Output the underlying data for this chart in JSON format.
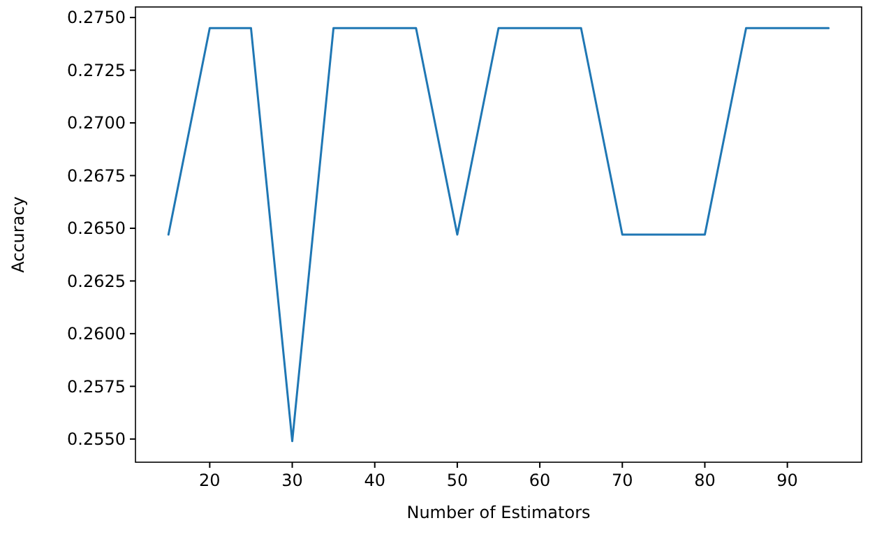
{
  "chart_data": {
    "type": "line",
    "xlabel": "Number of Estimators",
    "ylabel": "Accuracy",
    "x": [
      15,
      20,
      25,
      30,
      35,
      40,
      45,
      50,
      55,
      60,
      65,
      70,
      75,
      80,
      85,
      90,
      95
    ],
    "series": [
      {
        "color": "#1f77b4",
        "values": [
          0.2647,
          0.2745,
          0.2745,
          0.2549,
          0.2745,
          0.2745,
          0.2745,
          0.2647,
          0.2745,
          0.2745,
          0.2745,
          0.2647,
          0.2647,
          0.2647,
          0.2745,
          0.2745,
          0.2745
        ]
      }
    ],
    "xlim": [
      11,
      99
    ],
    "xticks": [
      20,
      30,
      40,
      50,
      60,
      70,
      80,
      90
    ],
    "ylim": [
      0.2539,
      0.2755
    ],
    "yticks": [
      {
        "value": 0.255,
        "label": "0.2550"
      },
      {
        "value": 0.2575,
        "label": "0.2575"
      },
      {
        "value": 0.26,
        "label": "0.2600"
      },
      {
        "value": 0.2625,
        "label": "0.2625"
      },
      {
        "value": 0.265,
        "label": "0.2650"
      },
      {
        "value": 0.2675,
        "label": "0.2675"
      },
      {
        "value": 0.27,
        "label": "0.2700"
      },
      {
        "value": 0.2725,
        "label": "0.2725"
      },
      {
        "value": 0.275,
        "label": "0.2750"
      }
    ],
    "grid": false,
    "marker": "none",
    "line_style": "solid"
  }
}
